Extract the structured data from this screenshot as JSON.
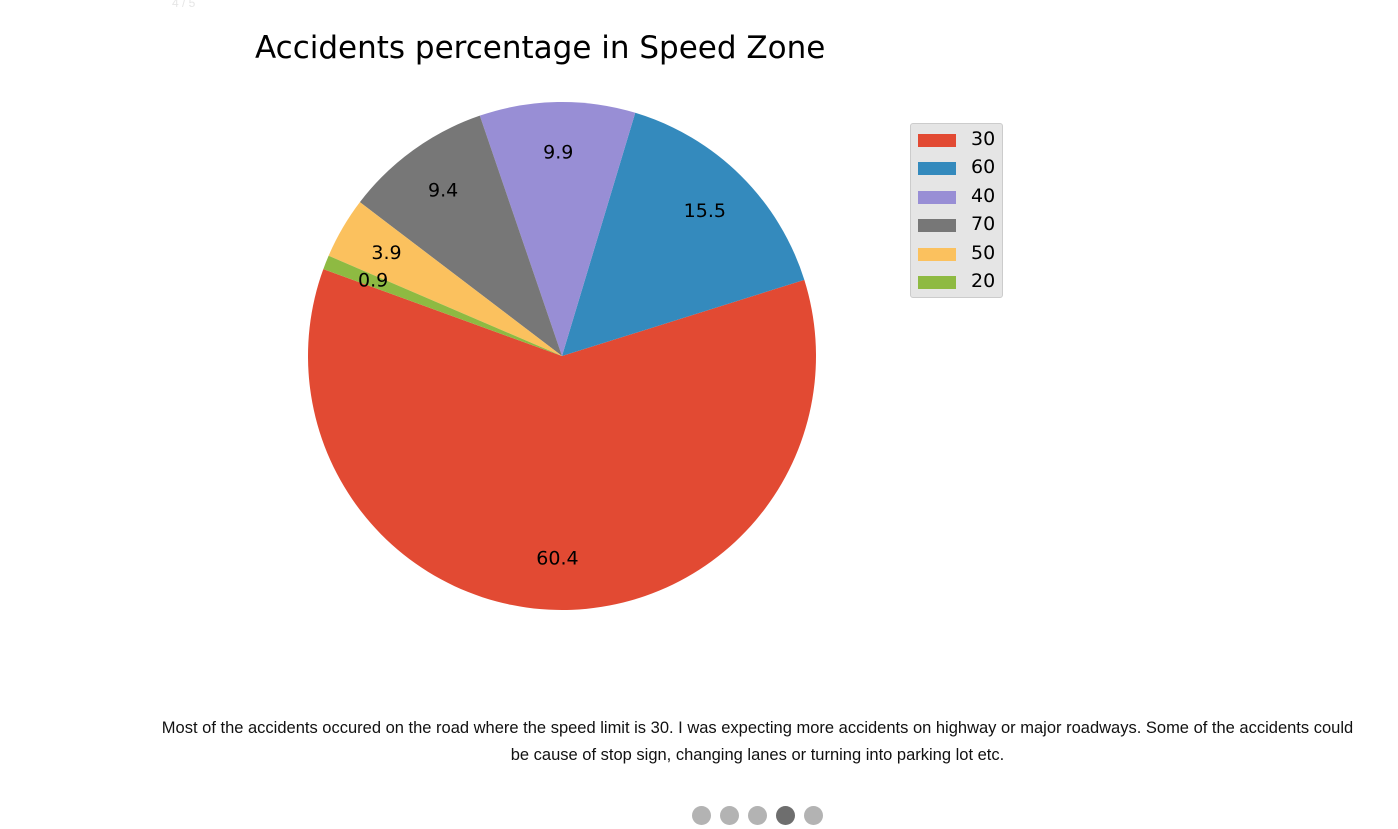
{
  "slide_counter": "4 / 5",
  "chart_data": {
    "type": "pie",
    "title": "Accidents percentage in Speed Zone",
    "categories": [
      "30",
      "60",
      "40",
      "70",
      "50",
      "20"
    ],
    "values": [
      60.4,
      15.5,
      9.9,
      9.4,
      3.9,
      0.9
    ],
    "data_labels": [
      "60.4",
      "15.5",
      "9.9",
      "9.4",
      "3.9",
      "0.9"
    ],
    "colors": [
      "#E24A33",
      "#348ABD",
      "#988ED5",
      "#777777",
      "#FBC15E",
      "#8EBA42"
    ],
    "legend_position": "right"
  },
  "legend": {
    "items": [
      {
        "label": "30",
        "color": "#E24A33"
      },
      {
        "label": "60",
        "color": "#348ABD"
      },
      {
        "label": "40",
        "color": "#988ED5"
      },
      {
        "label": "70",
        "color": "#777777"
      },
      {
        "label": "50",
        "color": "#FBC15E"
      },
      {
        "label": "20",
        "color": "#8EBA42"
      }
    ]
  },
  "caption": "Most of the accidents occured on the road where the speed limit is 30. I was expecting more accidents on highway or major roadways. Some of the accidents could be cause of stop sign, changing lanes or turning into parking lot etc.",
  "pagination": {
    "total": 5,
    "active_index": 3
  }
}
